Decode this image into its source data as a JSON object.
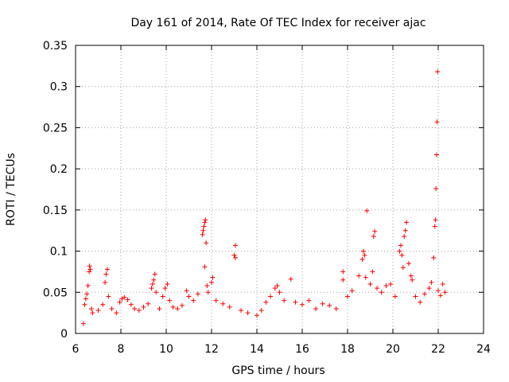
{
  "chart_data": {
    "type": "scatter",
    "title": "Day 161 of 2014, Rate Of TEC Index for receiver ajac",
    "xlabel": "GPS time / hours",
    "ylabel": "ROTI / TECUs",
    "xlim": [
      6,
      24
    ],
    "ylim": [
      0,
      0.35
    ],
    "xticks": [
      6,
      8,
      10,
      12,
      14,
      16,
      18,
      20,
      22,
      24
    ],
    "yticks": [
      0,
      0.05,
      0.1,
      0.15,
      0.2,
      0.25,
      0.3,
      0.35
    ],
    "xtick_labels": [
      "6",
      "8",
      "10",
      "12",
      "14",
      "16",
      "18",
      "20",
      "22",
      "24"
    ],
    "ytick_labels": [
      "0",
      "0.05",
      "0.1",
      "0.15",
      "0.2",
      "0.25",
      "0.3",
      "0.35"
    ],
    "grid": true,
    "marker": "+",
    "color": "#ff0000",
    "series": [
      {
        "name": "ROTI",
        "points": [
          [
            6.35,
            0.012
          ],
          [
            6.4,
            0.035
          ],
          [
            6.45,
            0.042
          ],
          [
            6.5,
            0.048
          ],
          [
            6.55,
            0.058
          ],
          [
            6.6,
            0.075
          ],
          [
            6.62,
            0.082
          ],
          [
            6.65,
            0.078
          ],
          [
            6.7,
            0.03
          ],
          [
            6.75,
            0.025
          ],
          [
            7.0,
            0.028
          ],
          [
            7.2,
            0.035
          ],
          [
            7.3,
            0.062
          ],
          [
            7.35,
            0.072
          ],
          [
            7.4,
            0.078
          ],
          [
            7.45,
            0.045
          ],
          [
            7.6,
            0.03
          ],
          [
            7.8,
            0.025
          ],
          [
            7.95,
            0.038
          ],
          [
            8.05,
            0.042
          ],
          [
            8.15,
            0.044
          ],
          [
            8.3,
            0.041
          ],
          [
            8.45,
            0.035
          ],
          [
            8.6,
            0.03
          ],
          [
            8.8,
            0.028
          ],
          [
            9.0,
            0.032
          ],
          [
            9.2,
            0.036
          ],
          [
            9.35,
            0.055
          ],
          [
            9.4,
            0.06
          ],
          [
            9.45,
            0.065
          ],
          [
            9.5,
            0.072
          ],
          [
            9.55,
            0.05
          ],
          [
            9.7,
            0.03
          ],
          [
            9.85,
            0.045
          ],
          [
            9.95,
            0.055
          ],
          [
            10.05,
            0.06
          ],
          [
            10.15,
            0.04
          ],
          [
            10.3,
            0.032
          ],
          [
            10.5,
            0.03
          ],
          [
            10.7,
            0.034
          ],
          [
            10.9,
            0.052
          ],
          [
            11.0,
            0.045
          ],
          [
            11.2,
            0.04
          ],
          [
            11.4,
            0.048
          ],
          [
            11.6,
            0.12
          ],
          [
            11.63,
            0.125
          ],
          [
            11.66,
            0.13
          ],
          [
            11.7,
            0.135
          ],
          [
            11.73,
            0.138
          ],
          [
            11.76,
            0.11
          ],
          [
            11.7,
            0.081
          ],
          [
            11.8,
            0.058
          ],
          [
            11.85,
            0.05
          ],
          [
            12.0,
            0.062
          ],
          [
            12.05,
            0.068
          ],
          [
            12.2,
            0.04
          ],
          [
            12.5,
            0.036
          ],
          [
            12.8,
            0.032
          ],
          [
            13.0,
            0.095
          ],
          [
            13.05,
            0.092
          ],
          [
            13.05,
            0.107
          ],
          [
            13.3,
            0.028
          ],
          [
            13.6,
            0.025
          ],
          [
            14.0,
            0.022
          ],
          [
            14.2,
            0.028
          ],
          [
            14.4,
            0.038
          ],
          [
            14.6,
            0.045
          ],
          [
            14.8,
            0.055
          ],
          [
            14.9,
            0.058
          ],
          [
            15.0,
            0.05
          ],
          [
            15.2,
            0.04
          ],
          [
            15.5,
            0.066
          ],
          [
            15.7,
            0.038
          ],
          [
            16.0,
            0.035
          ],
          [
            16.3,
            0.04
          ],
          [
            16.6,
            0.03
          ],
          [
            16.9,
            0.036
          ],
          [
            17.2,
            0.034
          ],
          [
            17.5,
            0.03
          ],
          [
            17.8,
            0.075
          ],
          [
            17.8,
            0.065
          ],
          [
            18.0,
            0.045
          ],
          [
            18.2,
            0.052
          ],
          [
            18.5,
            0.07
          ],
          [
            18.65,
            0.09
          ],
          [
            18.7,
            0.1
          ],
          [
            18.75,
            0.095
          ],
          [
            18.8,
            0.068
          ],
          [
            18.85,
            0.149
          ],
          [
            19.0,
            0.06
          ],
          [
            19.1,
            0.075
          ],
          [
            19.15,
            0.118
          ],
          [
            19.2,
            0.124
          ],
          [
            19.3,
            0.055
          ],
          [
            19.5,
            0.05
          ],
          [
            19.7,
            0.058
          ],
          [
            19.9,
            0.06
          ],
          [
            20.1,
            0.045
          ],
          [
            20.3,
            0.1
          ],
          [
            20.35,
            0.107
          ],
          [
            20.4,
            0.095
          ],
          [
            20.45,
            0.08
          ],
          [
            20.5,
            0.118
          ],
          [
            20.55,
            0.125
          ],
          [
            20.6,
            0.135
          ],
          [
            20.7,
            0.085
          ],
          [
            20.8,
            0.07
          ],
          [
            20.85,
            0.065
          ],
          [
            21.0,
            0.045
          ],
          [
            21.2,
            0.038
          ],
          [
            21.4,
            0.048
          ],
          [
            21.6,
            0.055
          ],
          [
            21.7,
            0.062
          ],
          [
            21.8,
            0.092
          ],
          [
            21.85,
            0.13
          ],
          [
            21.88,
            0.138
          ],
          [
            21.9,
            0.176
          ],
          [
            21.93,
            0.217
          ],
          [
            21.95,
            0.257
          ],
          [
            21.97,
            0.318
          ],
          [
            22.0,
            0.052
          ],
          [
            22.1,
            0.046
          ],
          [
            22.2,
            0.06
          ],
          [
            22.3,
            0.05
          ]
        ]
      }
    ]
  }
}
